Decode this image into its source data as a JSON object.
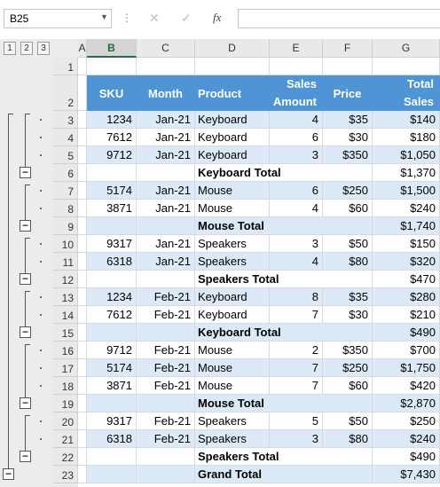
{
  "name_box": "B25",
  "formula_value": "",
  "icons": {
    "dropdown": "chevron-down-icon",
    "cancel": "cancel-icon",
    "enter": "check-icon",
    "function": "fx-icon"
  },
  "outline_levels": [
    "1",
    "2",
    "3"
  ],
  "columns": [
    "A",
    "B",
    "C",
    "D",
    "E",
    "F",
    "G"
  ],
  "selected_column": "B",
  "headers": {
    "sku": "SKU",
    "month": "Month",
    "product": "Product",
    "sales_amount": [
      "Sales",
      "Amount"
    ],
    "price": "Price",
    "total_sales": [
      "Total",
      "Sales"
    ]
  },
  "colors": {
    "header_fill": "#4f94d4",
    "band_fill": "#dce9f6",
    "excel_green": "#217346"
  },
  "rows": [
    {
      "r": "1",
      "kind": "blank"
    },
    {
      "r": "2",
      "kind": "header"
    },
    {
      "r": "3",
      "kind": "data",
      "sku": "1234",
      "month": "Jan-21",
      "product": "Keyboard",
      "amount": "4",
      "price": "$35",
      "total": "$140"
    },
    {
      "r": "4",
      "kind": "data",
      "sku": "7612",
      "month": "Jan-21",
      "product": "Keyboard",
      "amount": "6",
      "price": "$30",
      "total": "$180"
    },
    {
      "r": "5",
      "kind": "data",
      "sku": "9712",
      "month": "Jan-21",
      "product": "Keyboard",
      "amount": "3",
      "price": "$350",
      "total": "$1,050"
    },
    {
      "r": "6",
      "kind": "subtotal",
      "label": "Keyboard Total",
      "total": "$1,370"
    },
    {
      "r": "7",
      "kind": "data",
      "sku": "5174",
      "month": "Jan-21",
      "product": "Mouse",
      "amount": "6",
      "price": "$250",
      "total": "$1,500"
    },
    {
      "r": "8",
      "kind": "data",
      "sku": "3871",
      "month": "Jan-21",
      "product": "Mouse",
      "amount": "4",
      "price": "$60",
      "total": "$240"
    },
    {
      "r": "9",
      "kind": "subtotal",
      "label": "Mouse Total",
      "total": "$1,740"
    },
    {
      "r": "10",
      "kind": "data",
      "sku": "9317",
      "month": "Jan-21",
      "product": "Speakers",
      "amount": "3",
      "price": "$50",
      "total": "$150"
    },
    {
      "r": "11",
      "kind": "data",
      "sku": "6318",
      "month": "Jan-21",
      "product": "Speakers",
      "amount": "4",
      "price": "$80",
      "total": "$320"
    },
    {
      "r": "12",
      "kind": "subtotal",
      "label": "Speakers Total",
      "total": "$470"
    },
    {
      "r": "13",
      "kind": "data",
      "sku": "1234",
      "month": "Feb-21",
      "product": "Keyboard",
      "amount": "8",
      "price": "$35",
      "total": "$280"
    },
    {
      "r": "14",
      "kind": "data",
      "sku": "7612",
      "month": "Feb-21",
      "product": "Keyboard",
      "amount": "7",
      "price": "$30",
      "total": "$210"
    },
    {
      "r": "15",
      "kind": "subtotal",
      "label": "Keyboard Total",
      "total": "$490"
    },
    {
      "r": "16",
      "kind": "data",
      "sku": "9712",
      "month": "Feb-21",
      "product": "Mouse",
      "amount": "2",
      "price": "$350",
      "total": "$700"
    },
    {
      "r": "17",
      "kind": "data",
      "sku": "5174",
      "month": "Feb-21",
      "product": "Mouse",
      "amount": "7",
      "price": "$250",
      "total": "$1,750"
    },
    {
      "r": "18",
      "kind": "data",
      "sku": "3871",
      "month": "Feb-21",
      "product": "Mouse",
      "amount": "7",
      "price": "$60",
      "total": "$420"
    },
    {
      "r": "19",
      "kind": "subtotal",
      "label": "Mouse Total",
      "total": "$2,870"
    },
    {
      "r": "20",
      "kind": "data",
      "sku": "9317",
      "month": "Feb-21",
      "product": "Speakers",
      "amount": "5",
      "price": "$50",
      "total": "$250"
    },
    {
      "r": "21",
      "kind": "data",
      "sku": "6318",
      "month": "Feb-21",
      "product": "Speakers",
      "amount": "3",
      "price": "$80",
      "total": "$240"
    },
    {
      "r": "22",
      "kind": "subtotal",
      "label": "Speakers Total",
      "total": "$490"
    },
    {
      "r": "23",
      "kind": "grand",
      "label": "Grand Total",
      "total": "$7,430"
    }
  ]
}
